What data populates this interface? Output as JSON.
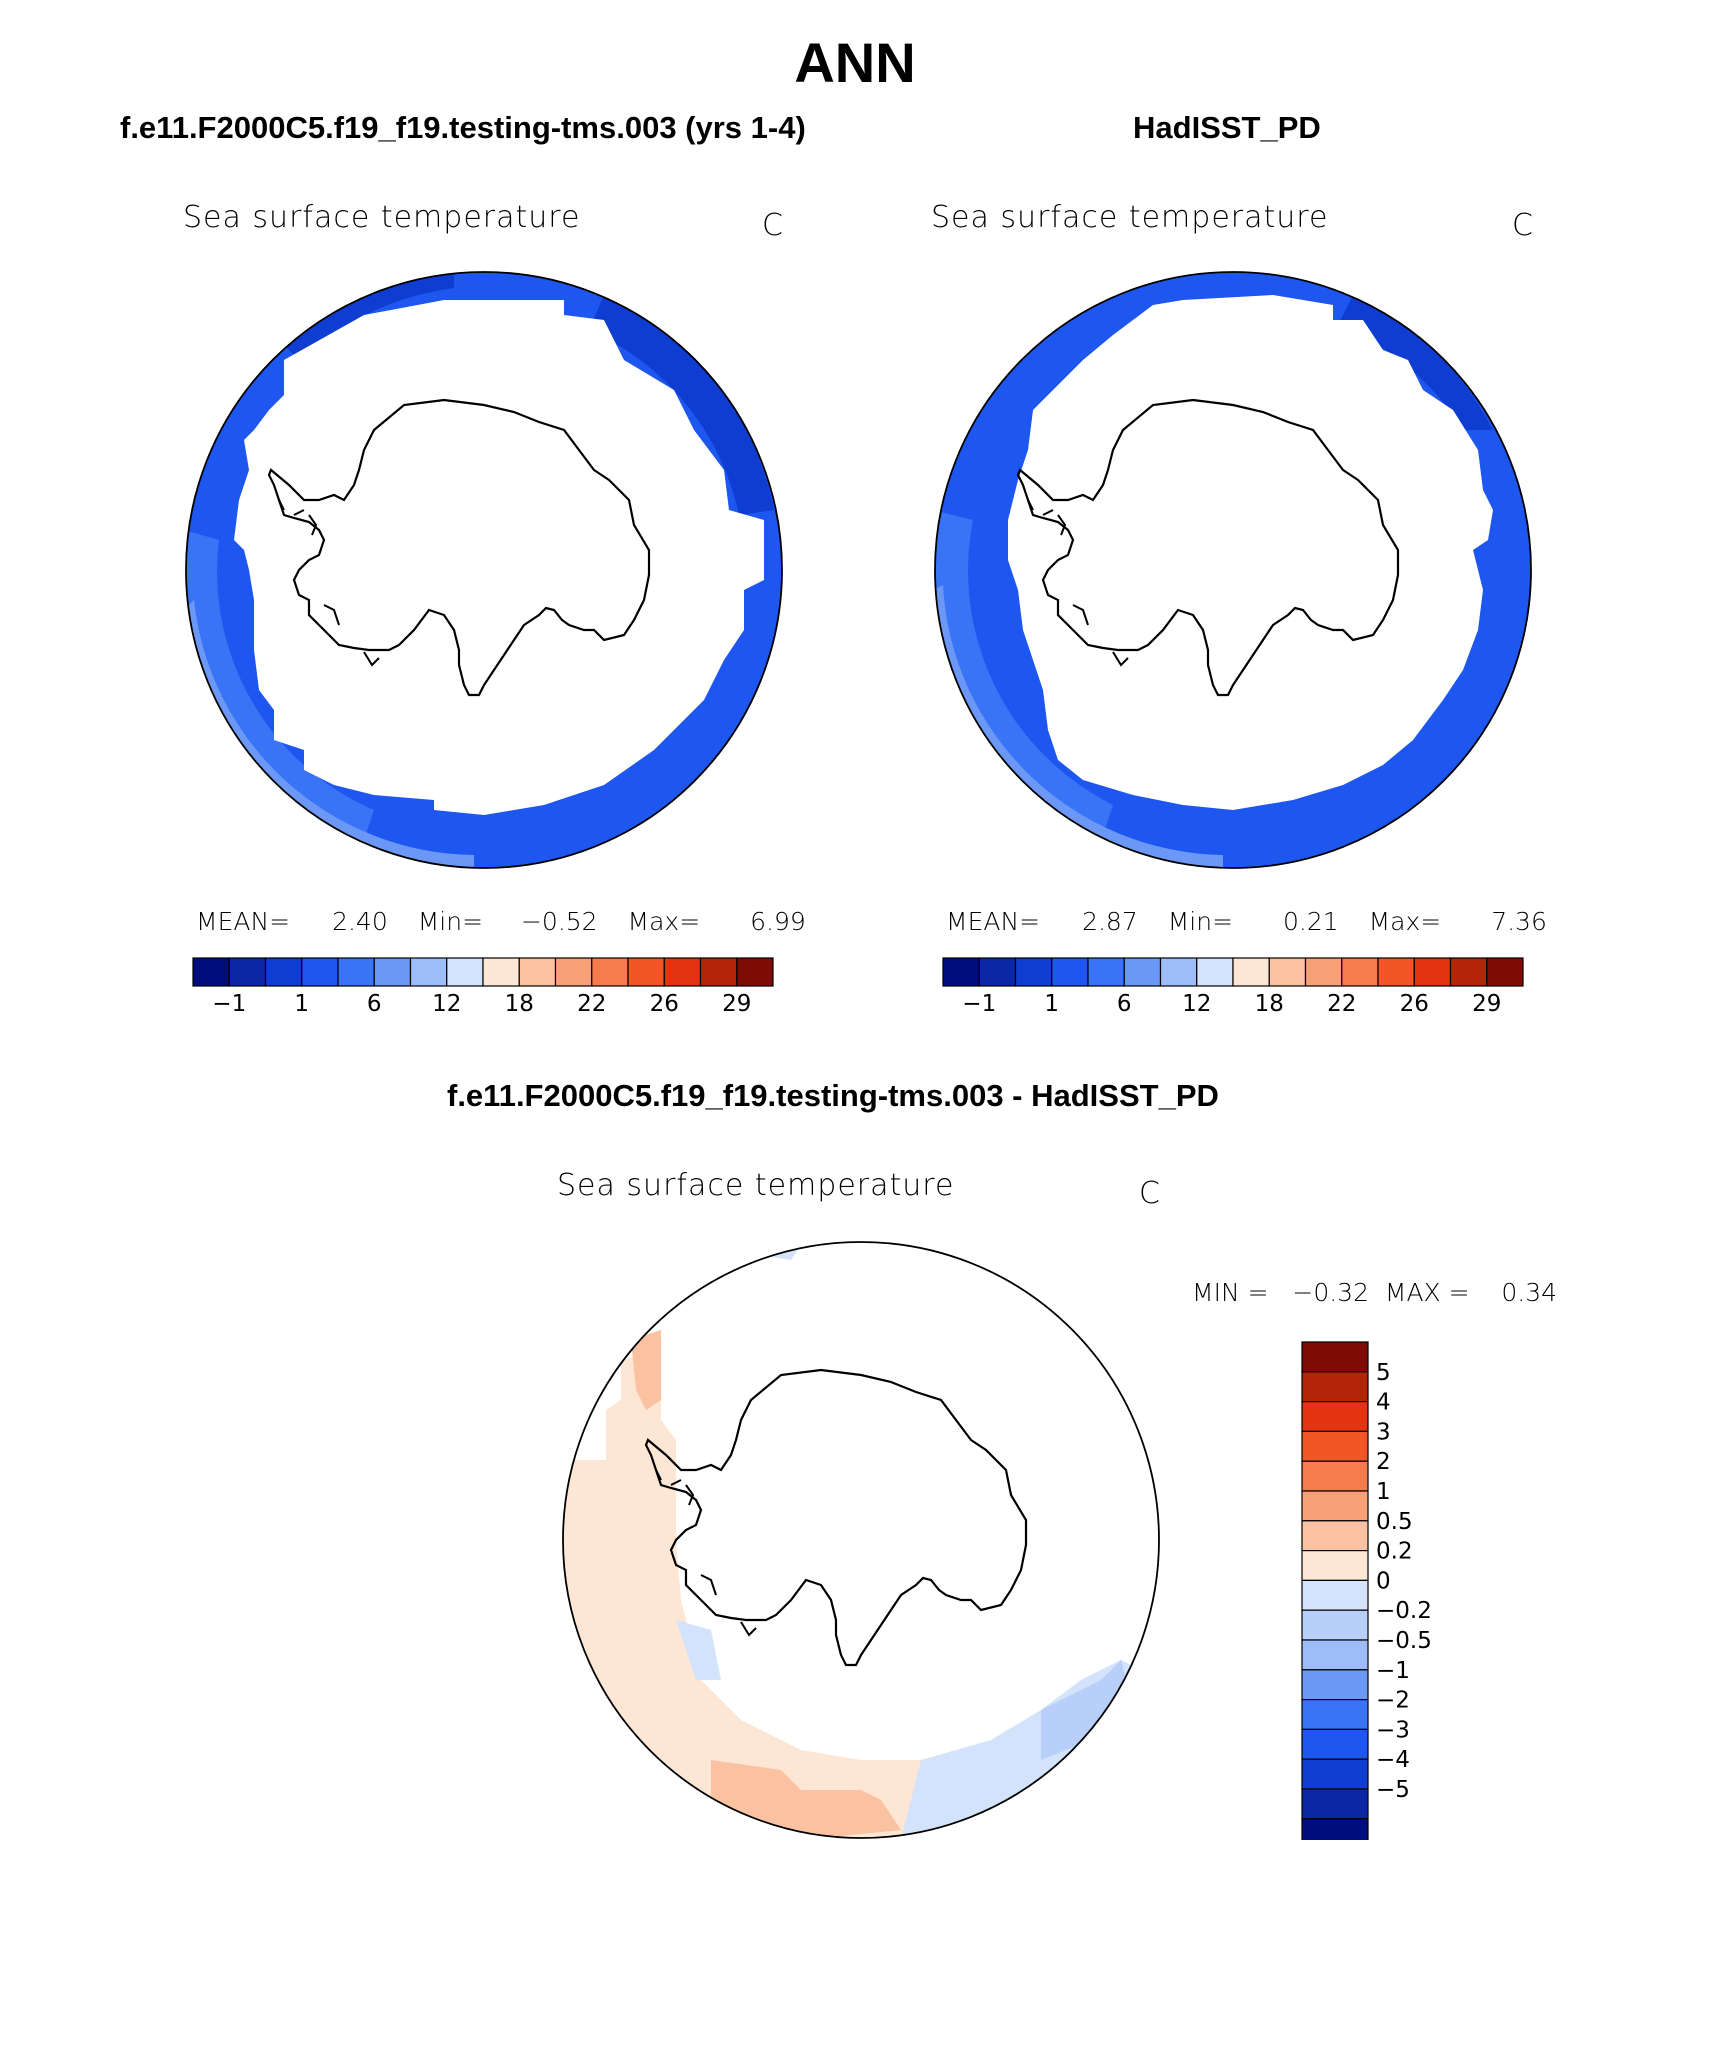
{
  "title": "ANN",
  "colors": {
    "main_scale": [
      "#000e7d",
      "#0a27a8",
      "#0f3dd1",
      "#1e56f0",
      "#3874f5",
      "#6b98f7",
      "#9dbdf9",
      "#d2e3fb",
      "#fde6d3",
      "#fbc2a2",
      "#f9a078",
      "#f77c4d",
      "#f35527",
      "#e33310",
      "#b42407",
      "#7e0b04"
    ],
    "diff_scale": [
      "#7e0b04",
      "#b42407",
      "#e33310",
      "#f35527",
      "#f77c4d",
      "#f9a078",
      "#fbc2a2",
      "#fde6d3",
      "#d2e3fb",
      "#b7cff9",
      "#9dbdf9",
      "#6b98f7",
      "#3874f5",
      "#1e56f0",
      "#0f3dd1",
      "#0a27a8",
      "#000e7d"
    ]
  },
  "panels": {
    "left": {
      "heading": "f.e11.F2000C5.f19_f19.testing-tms.003 (yrs 1-4)",
      "variable": "Sea surface temperature",
      "units": "C",
      "mean_label": "MEAN=",
      "mean": "2.40",
      "min_label": "Min=",
      "min": "−0.52",
      "max_label": "Max=",
      "max": "6.99",
      "ticks": [
        "−1",
        "1",
        "6",
        "12",
        "18",
        "22",
        "26",
        "29"
      ]
    },
    "right": {
      "heading": "HadISST_PD",
      "variable": "Sea surface temperature",
      "units": "C",
      "mean_label": "MEAN=",
      "mean": "2.87",
      "min_label": "Min=",
      "min": "0.21",
      "max_label": "Max=",
      "max": "7.36",
      "ticks": [
        "−1",
        "1",
        "6",
        "12",
        "18",
        "22",
        "26",
        "29"
      ]
    },
    "diff": {
      "heading": "f.e11.F2000C5.f19_f19.testing-tms.003 - HadISST_PD",
      "variable": "Sea surface temperature",
      "units": "C",
      "minmax": "MIN =   −0.32  MAX =    0.34",
      "ticks": [
        "5",
        "4",
        "3",
        "2",
        "1",
        "0.5",
        "0.2",
        "0",
        "−0.2",
        "−0.5",
        "−1",
        "−2",
        "−3",
        "−4",
        "−5"
      ]
    }
  }
}
